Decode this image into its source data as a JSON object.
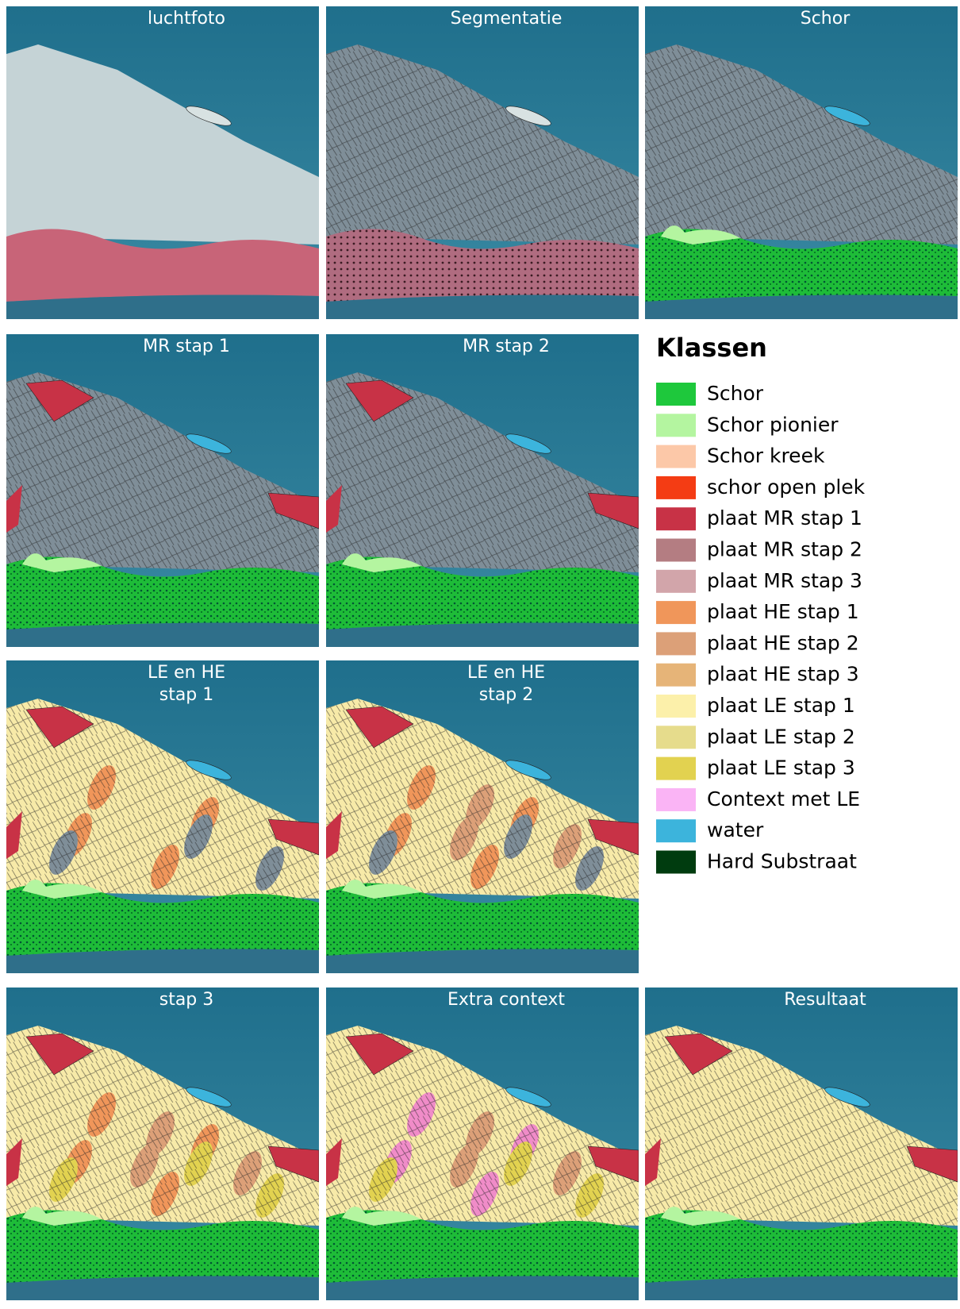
{
  "panels": [
    {
      "lines": [
        "luchtfoto"
      ]
    },
    {
      "lines": [
        "Segmentatie"
      ]
    },
    {
      "lines": [
        "Schor"
      ]
    },
    {
      "lines": [
        "MR stap 1"
      ]
    },
    {
      "lines": [
        "MR stap 2"
      ]
    },
    {
      "lines": [
        "LE en HE",
        "stap 1"
      ]
    },
    {
      "lines": [
        "LE en HE",
        "stap 2"
      ]
    },
    {
      "lines": [
        "stap 3"
      ]
    },
    {
      "lines": [
        "Extra context"
      ]
    },
    {
      "lines": [
        "Resultaat"
      ]
    }
  ],
  "legend": {
    "title": "Klassen",
    "items": [
      {
        "label": "Schor",
        "color": "#1ec83c"
      },
      {
        "label": "Schor pionier",
        "color": "#b4f5a0"
      },
      {
        "label": "Schor kreek",
        "color": "#fcc8a8"
      },
      {
        "label": "schor open plek",
        "color": "#f43c14"
      },
      {
        "label": "plaat MR stap 1",
        "color": "#c83246"
      },
      {
        "label": "plaat MR stap 2",
        "color": "#b47d82"
      },
      {
        "label": "plaat MR stap 3",
        "color": "#d2a5aa"
      },
      {
        "label": "plaat HE stap 1",
        "color": "#f0965a"
      },
      {
        "label": "plaat HE stap 2",
        "color": "#dca078"
      },
      {
        "label": "plaat HE stap 3",
        "color": "#e6b478"
      },
      {
        "label": "plaat LE stap 1",
        "color": "#fcf0aa"
      },
      {
        "label": "plaat LE stap 2",
        "color": "#e6dc8c"
      },
      {
        "label": "plaat LE stap 3",
        "color": "#e2d250"
      },
      {
        "label": "Context met LE",
        "color": "#fab4f5"
      },
      {
        "label": "water",
        "color": "#3cb4dc"
      },
      {
        "label": "Hard Substraat",
        "color": "#003c0f"
      }
    ]
  }
}
